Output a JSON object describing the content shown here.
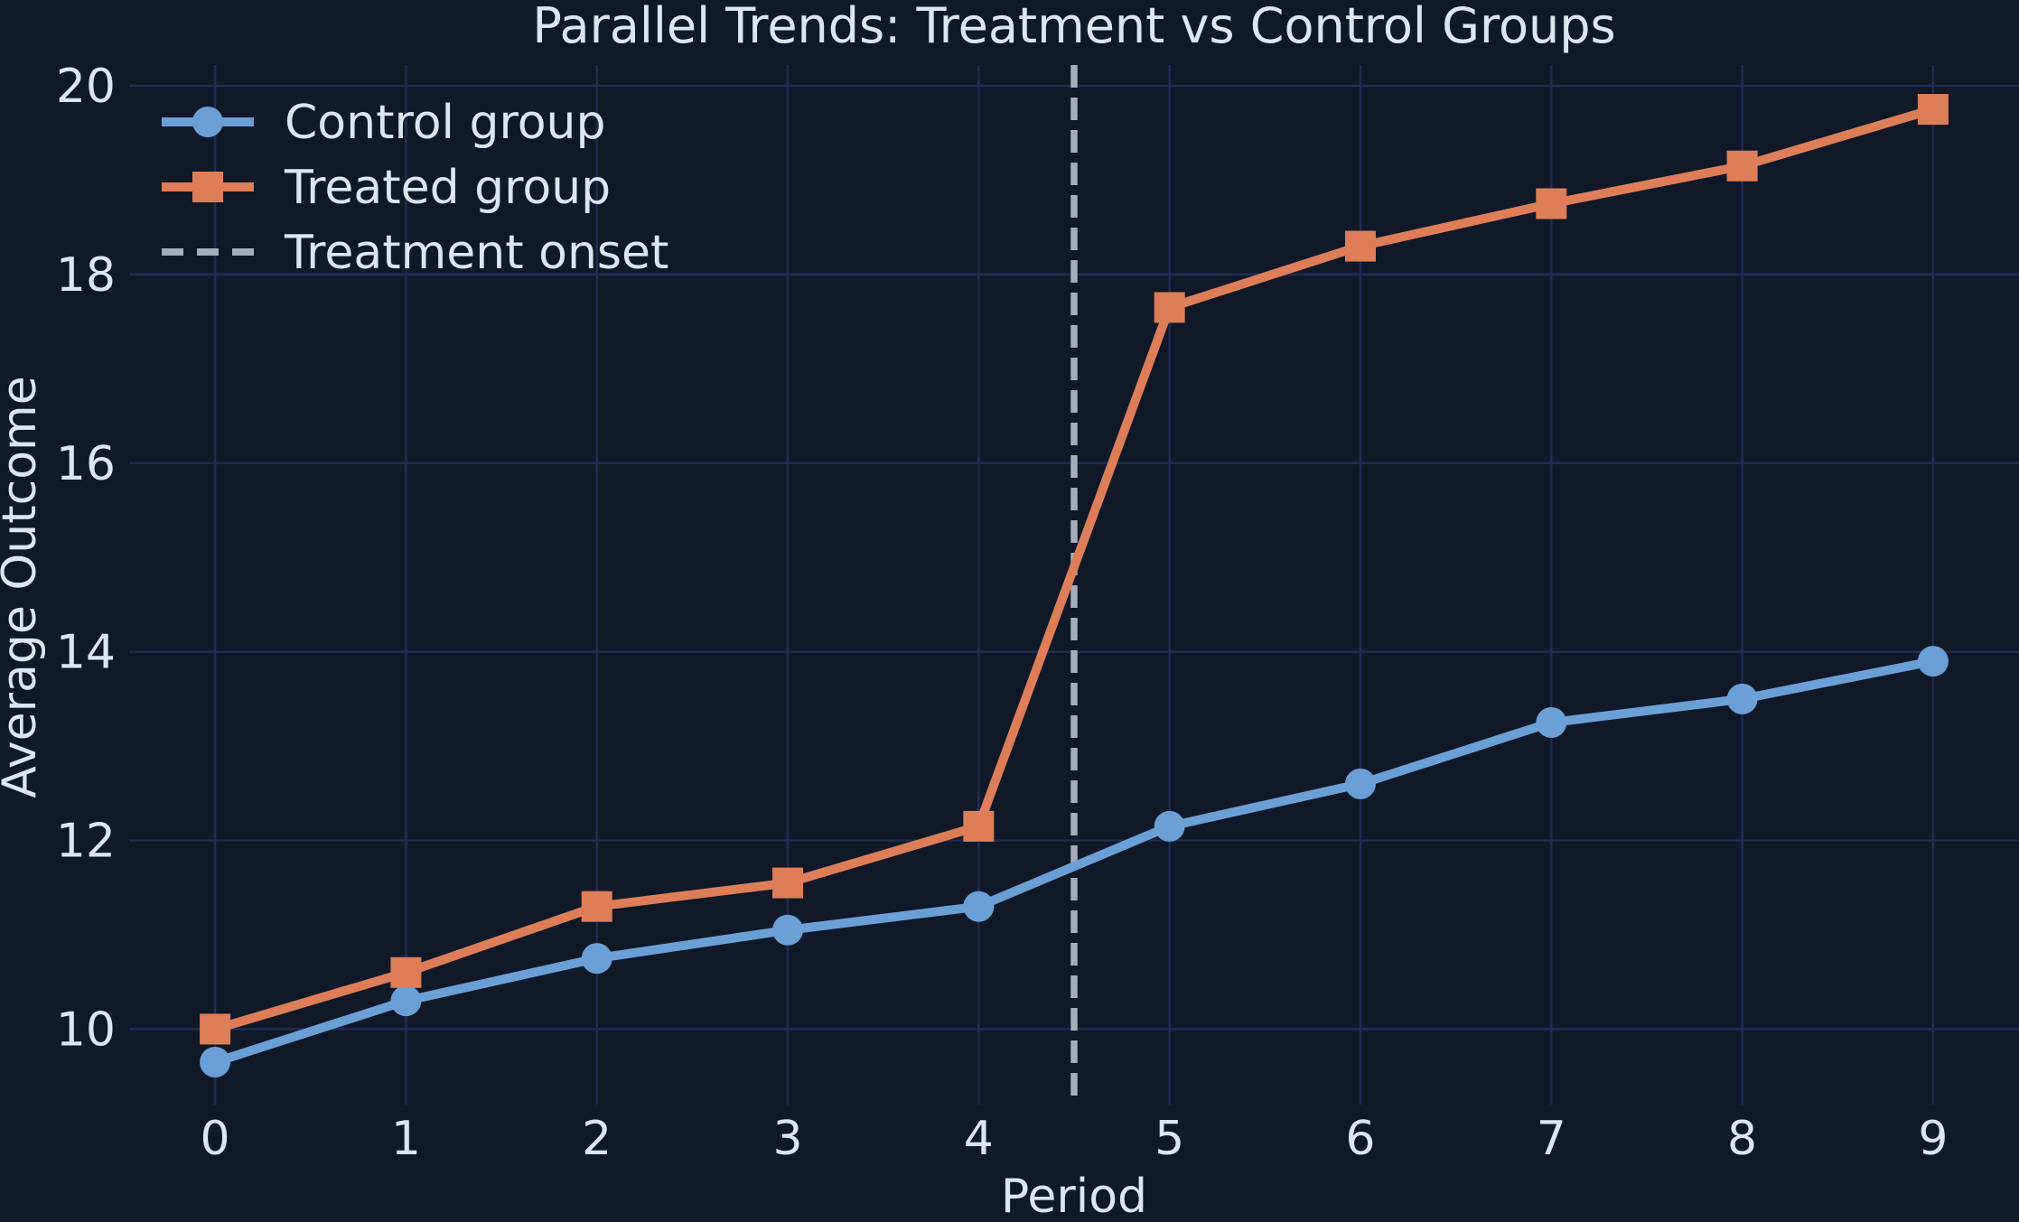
{
  "chart_data": {
    "type": "line",
    "title": "Parallel Trends: Treatment vs Control Groups",
    "xlabel": "Period",
    "ylabel": "Average Outcome",
    "x": [
      0,
      1,
      2,
      3,
      4,
      5,
      6,
      7,
      8,
      9
    ],
    "series": [
      {
        "name": "Control group",
        "color": "#6ba0d6",
        "marker": "circle",
        "values": [
          9.65,
          10.3,
          10.75,
          11.05,
          11.3,
          12.15,
          12.6,
          13.25,
          13.5,
          13.9
        ]
      },
      {
        "name": "Treated group",
        "color": "#dd7e58",
        "marker": "square",
        "values": [
          10.0,
          10.6,
          11.3,
          11.55,
          12.15,
          17.65,
          18.3,
          18.75,
          19.15,
          19.75
        ]
      }
    ],
    "annotation_line": {
      "label": "Treatment onset",
      "x": 4.5,
      "style": "dashed",
      "color": "#a6acb8"
    },
    "xticks": [
      0,
      1,
      2,
      3,
      4,
      5,
      6,
      7,
      8,
      9
    ],
    "yticks": [
      10,
      12,
      14,
      16,
      18,
      20
    ],
    "xlim": [
      -0.45,
      9.45
    ],
    "ylim": [
      9.2,
      20.22
    ],
    "grid": true,
    "legend_position": "upper left",
    "legend": [
      "Control group",
      "Treated group",
      "Treatment onset"
    ]
  },
  "colors": {
    "background": "#111929",
    "grid": "#202c52",
    "text": "#dfe4f0",
    "control": "#6ba0d6",
    "treated": "#dd7e58",
    "onset": "#a6acb8"
  }
}
